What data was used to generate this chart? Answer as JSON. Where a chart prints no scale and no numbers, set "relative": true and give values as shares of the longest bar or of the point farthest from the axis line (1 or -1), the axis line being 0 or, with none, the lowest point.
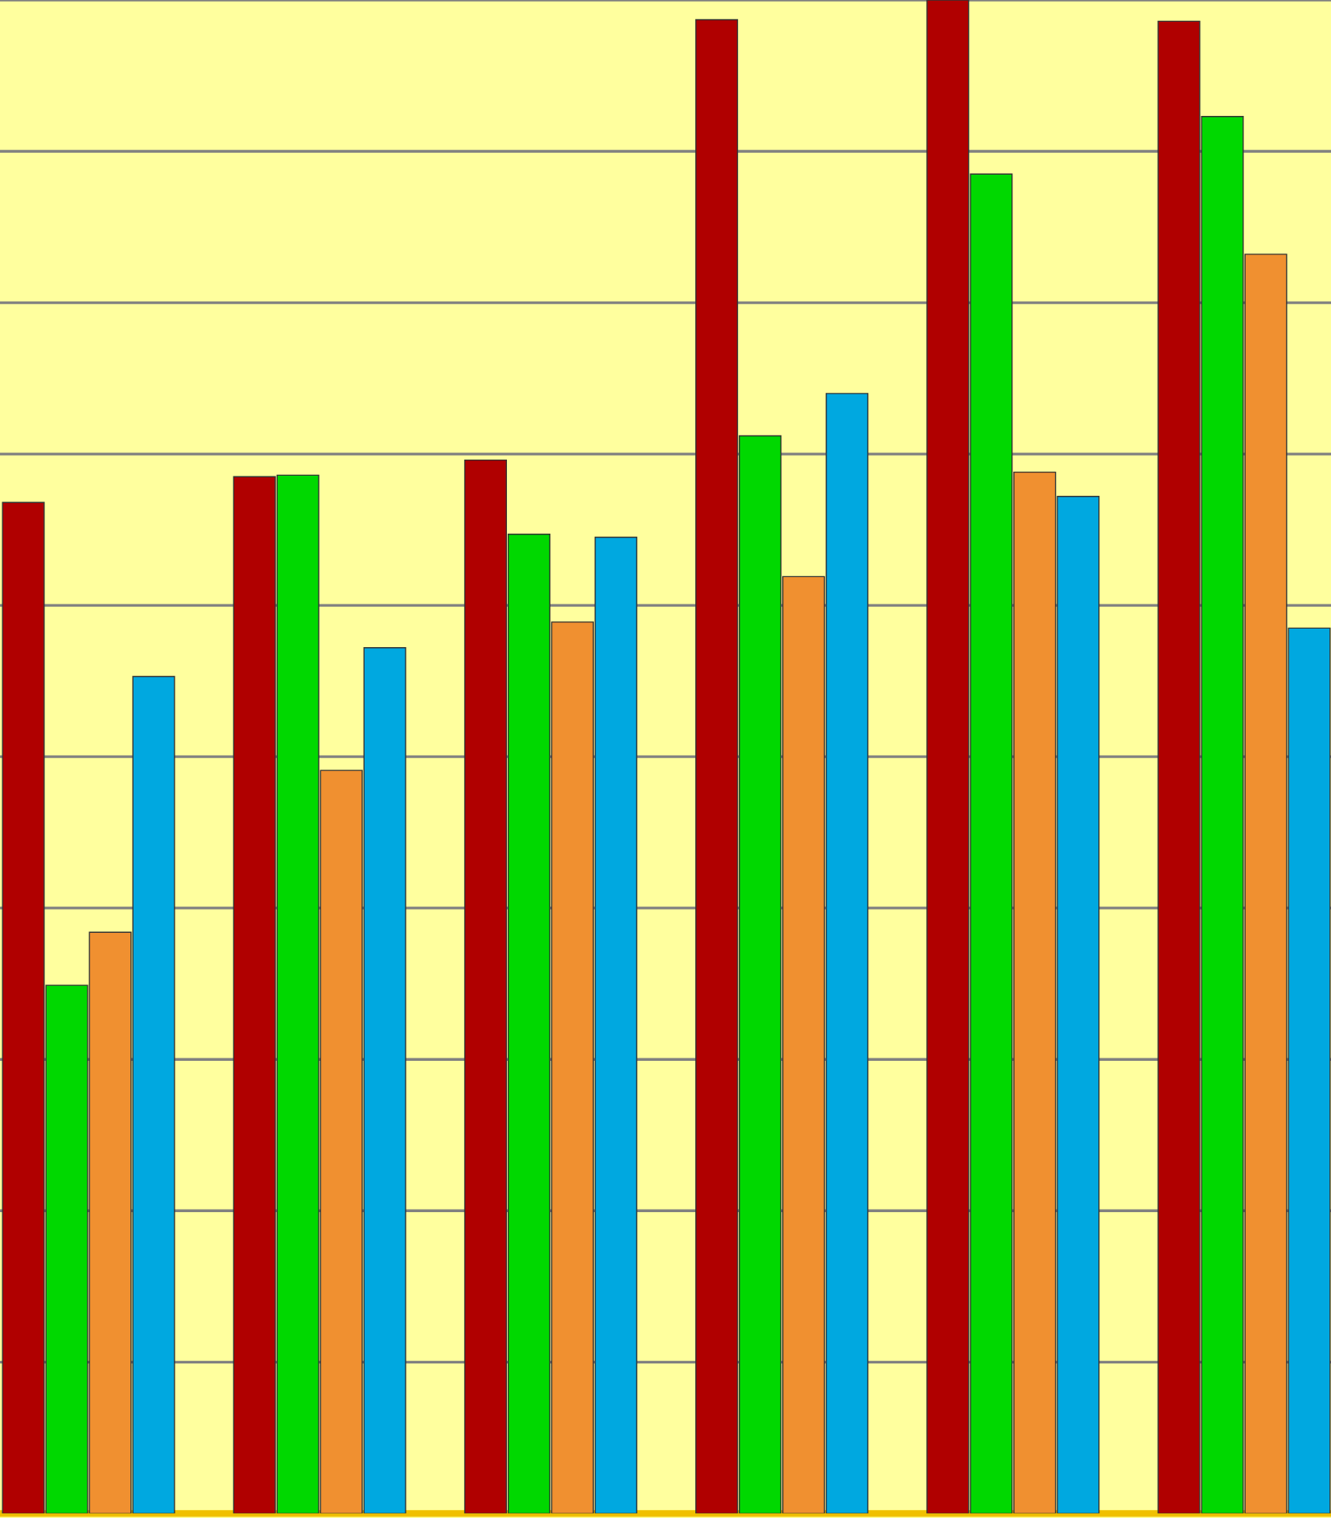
{
  "chart_data": {
    "type": "bar",
    "relative": true,
    "grid": "y",
    "categories": [
      null,
      null,
      null,
      null,
      null,
      null
    ],
    "series": [
      {
        "color": "#b00000",
        "values": [
          0.668,
          0.685,
          0.696,
          0.987,
          1.0,
          0.986
        ]
      },
      {
        "color": "#00d800",
        "values": [
          0.349,
          0.686,
          0.647,
          0.712,
          0.885,
          0.923
        ]
      },
      {
        "color": "#f09030",
        "values": [
          0.384,
          0.491,
          0.589,
          0.619,
          0.688,
          0.832
        ]
      },
      {
        "color": "#00a8e0",
        "values": [
          0.553,
          0.572,
          0.645,
          0.74,
          0.672,
          0.585
        ]
      }
    ]
  }
}
